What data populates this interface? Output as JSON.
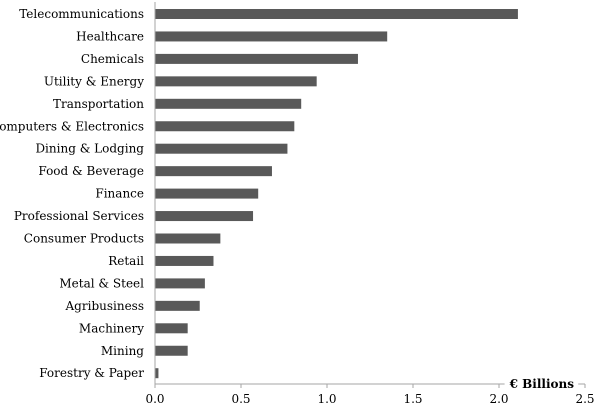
{
  "chart_data": {
    "type": "bar",
    "orientation": "horizontal",
    "categories": [
      "Telecommunications",
      "Healthcare",
      "Chemicals",
      "Utility & Energy",
      "Transportation",
      "Computers & Electronics",
      "Dining & Lodging",
      "Food & Beverage",
      "Finance",
      "Professional Services",
      "Consumer Products",
      "Retail",
      "Metal & Steel",
      "Agribusiness",
      "Machinery",
      "Mining",
      "Forestry & Paper"
    ],
    "values": [
      2.11,
      1.35,
      1.18,
      0.94,
      0.85,
      0.81,
      0.77,
      0.68,
      0.6,
      0.57,
      0.38,
      0.34,
      0.29,
      0.26,
      0.19,
      0.19,
      0.02
    ],
    "title": "",
    "xlabel": "€ Billions",
    "ylabel": "",
    "xlim": [
      0,
      2.5
    ],
    "xticks": [
      "0.0",
      "0.5",
      "1.0",
      "1.5",
      "2.0",
      "2.5"
    ],
    "grid": false,
    "legend": "none",
    "bar_color": "#595959",
    "axis_color": "#a6a6a6"
  }
}
